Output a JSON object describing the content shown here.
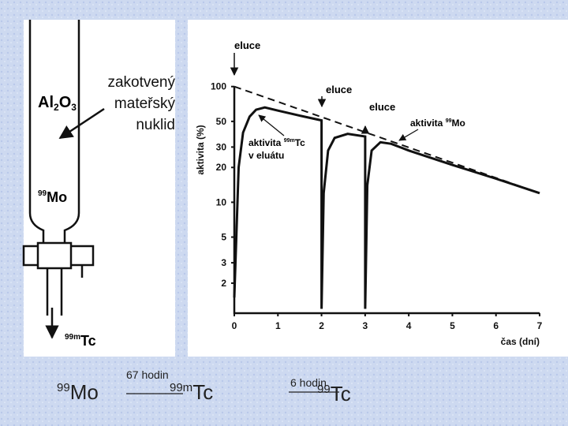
{
  "column": {
    "adsorbent": [
      "Al",
      "2",
      "O",
      "3"
    ],
    "note": [
      "zakotvený",
      "mateřský",
      "nuklid"
    ],
    "parent": [
      "99",
      "Mo"
    ],
    "eluate": [
      "99m",
      "Tc"
    ]
  },
  "chart_data": {
    "type": "line",
    "xlabel": "čas (dní)",
    "ylabel": "aktivita (%)",
    "log_y": true,
    "xlim": [
      0,
      7
    ],
    "xticks": [
      0,
      1,
      2,
      3,
      4,
      5,
      6,
      7
    ],
    "ylim": [
      1.1,
      130
    ],
    "yticks": [
      2,
      3,
      5,
      10,
      20,
      30,
      50,
      100
    ],
    "elution_labels": [
      "eluce",
      "eluce",
      "eluce"
    ],
    "annotations": [
      [
        "aktivita ",
        "99m",
        "Tc",
        "v eluátu"
      ],
      [
        "aktivita ",
        "99",
        "Mo"
      ]
    ],
    "series": [
      {
        "color": "#111111",
        "style": "solid",
        "x": [
          0,
          0.1,
          0.2,
          0.35,
          0.5,
          0.7,
          1,
          1.5,
          2,
          2,
          2.05,
          2.15,
          2.3,
          2.6,
          3,
          3,
          3.05,
          3.15,
          3.35,
          3.6,
          4,
          5,
          6,
          7
        ],
        "values": [
          1.5,
          20,
          40,
          55,
          63,
          66,
          62,
          56,
          51,
          1.2,
          12,
          28,
          36,
          39,
          37,
          1.2,
          14,
          28,
          33,
          32,
          28,
          21,
          16,
          12
        ]
      },
      {
        "color": "#111111",
        "style": "dashed",
        "x": [
          0,
          7
        ],
        "values": [
          100,
          12
        ]
      }
    ]
  },
  "decay": {
    "parent": [
      "99",
      "Mo"
    ],
    "half_life_1": "67 hodin",
    "daughter": [
      "99m",
      "Tc"
    ],
    "half_life_2": "6 hodin",
    "product": [
      "99",
      "Tc"
    ]
  }
}
